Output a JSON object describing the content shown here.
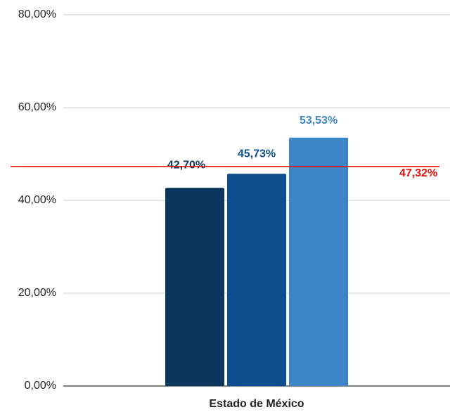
{
  "chart_data": {
    "type": "bar",
    "categories": [
      "Estado de México"
    ],
    "series": [
      {
        "color": "#0b365e",
        "values": [
          42.7
        ],
        "value_labels": [
          "42,70%"
        ]
      },
      {
        "color": "#0d4f91",
        "values": [
          45.73
        ],
        "value_labels": [
          "45,73%"
        ]
      },
      {
        "color": "#3d85c6",
        "values": [
          53.53
        ],
        "value_labels": [
          "53,53%"
        ]
      }
    ],
    "reference_line": {
      "value": 47.32,
      "label": "47,32%",
      "color": "#e8120c"
    },
    "ylim": [
      0,
      80
    ],
    "yticks": [
      {
        "value": 0,
        "label": "0,00%"
      },
      {
        "value": 20,
        "label": "20,00%"
      },
      {
        "value": 40,
        "label": "40,00%"
      },
      {
        "value": 60,
        "label": "60,00%"
      },
      {
        "value": 80,
        "label": "80,00%"
      }
    ],
    "grid": true
  }
}
